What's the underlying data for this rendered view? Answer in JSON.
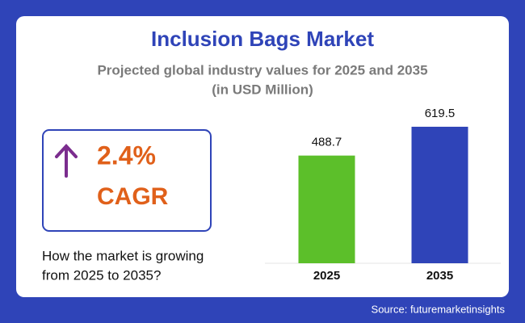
{
  "header": {
    "title": "Inclusion Bags Market",
    "subtitle": [
      "Projected global industry values for 2025 and 2035",
      "(in USD Million)"
    ]
  },
  "cagr": {
    "value": "2.4%",
    "label": "CAGR"
  },
  "question": [
    "How the market is growing",
    "from 2025 to 2035?"
  ],
  "chart_data": {
    "type": "bar",
    "categories": [
      "2025",
      "2035"
    ],
    "values": [
      488.7,
      619.5
    ],
    "colors": [
      "#5cbf2a",
      "#2f44b8"
    ],
    "ylim": [
      0,
      700
    ]
  },
  "source": "Source: futuremarketinsights"
}
